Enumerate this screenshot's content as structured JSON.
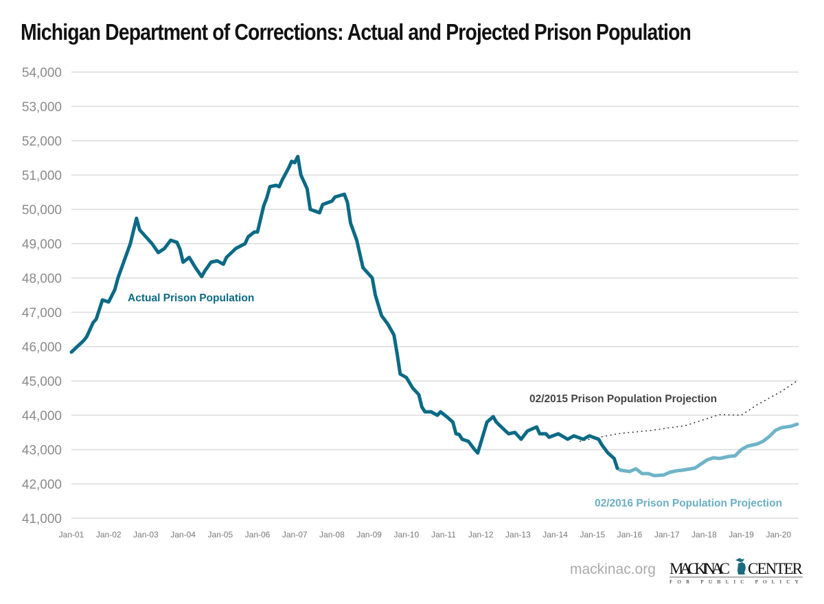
{
  "chart_data": {
    "type": "line",
    "title": "Michigan Department of Corrections: Actual and Projected Prison Population",
    "xlabel": "",
    "ylabel": "",
    "ylim": [
      41000,
      54000
    ],
    "xlim": [
      "2001-01",
      "2020-07"
    ],
    "grid": true,
    "yticks": [
      "41,000",
      "42,000",
      "43,000",
      "44,000",
      "45,000",
      "46,000",
      "47,000",
      "48,000",
      "49,000",
      "50,000",
      "51,000",
      "52,000",
      "53,000",
      "54,000"
    ],
    "ytick_values": [
      41000,
      42000,
      43000,
      44000,
      45000,
      46000,
      47000,
      48000,
      49000,
      50000,
      51000,
      52000,
      53000,
      54000
    ],
    "xticks": [
      "Jan-01",
      "Jan-02",
      "Jan-03",
      "Jan-04",
      "Jan-05",
      "Jan-06",
      "Jan-07",
      "Jan-08",
      "Jan-09",
      "Jan-10",
      "Jan-11",
      "Jan-12",
      "Jan-13",
      "Jan-14",
      "Jan-15",
      "Jan-16",
      "Jan-17",
      "Jan-18",
      "Jan-19",
      "Jan-20"
    ],
    "series": [
      {
        "name": "Actual Prison Population",
        "color": "#0b6a85",
        "style": "solid-thick",
        "points": [
          [
            "2001-01",
            45840
          ],
          [
            "2001-05",
            46180
          ],
          [
            "2001-06",
            46300
          ],
          [
            "2001-08",
            46700
          ],
          [
            "2001-09",
            46800
          ],
          [
            "2001-11",
            47360
          ],
          [
            "2002-01",
            47300
          ],
          [
            "2002-03",
            47660
          ],
          [
            "2002-04",
            48000
          ],
          [
            "2002-06",
            48500
          ],
          [
            "2002-08",
            49000
          ],
          [
            "2002-10",
            49740
          ],
          [
            "2002-11",
            49400
          ],
          [
            "2003-01",
            49200
          ],
          [
            "2003-03",
            49000
          ],
          [
            "2003-05",
            48740
          ],
          [
            "2003-07",
            48860
          ],
          [
            "2003-09",
            49100
          ],
          [
            "2003-11",
            49040
          ],
          [
            "2003-12",
            48840
          ],
          [
            "2004-01",
            48460
          ],
          [
            "2004-03",
            48600
          ],
          [
            "2004-05",
            48300
          ],
          [
            "2004-07",
            48040
          ],
          [
            "2004-08",
            48200
          ],
          [
            "2004-10",
            48460
          ],
          [
            "2004-12",
            48500
          ],
          [
            "2005-02",
            48400
          ],
          [
            "2005-03",
            48600
          ],
          [
            "2005-06",
            48860
          ],
          [
            "2005-09",
            49000
          ],
          [
            "2005-10",
            49200
          ],
          [
            "2005-12",
            49340
          ],
          [
            "2006-01",
            49340
          ],
          [
            "2006-03",
            50100
          ],
          [
            "2006-04",
            50340
          ],
          [
            "2006-05",
            50660
          ],
          [
            "2006-07",
            50700
          ],
          [
            "2006-08",
            50660
          ],
          [
            "2006-09",
            50860
          ],
          [
            "2006-11",
            51200
          ],
          [
            "2006-12",
            51400
          ],
          [
            "2007-01",
            51360
          ],
          [
            "2007-02",
            51540
          ],
          [
            "2007-03",
            51000
          ],
          [
            "2007-05",
            50600
          ],
          [
            "2007-06",
            50000
          ],
          [
            "2007-09",
            49900
          ],
          [
            "2007-10",
            50140
          ],
          [
            "2008-01",
            50240
          ],
          [
            "2008-02",
            50360
          ],
          [
            "2008-05",
            50440
          ],
          [
            "2008-06",
            50200
          ],
          [
            "2008-07",
            49600
          ],
          [
            "2008-09",
            49100
          ],
          [
            "2008-11",
            48300
          ],
          [
            "2009-02",
            48000
          ],
          [
            "2009-03",
            47500
          ],
          [
            "2009-05",
            46900
          ],
          [
            "2009-07",
            46660
          ],
          [
            "2009-09",
            46340
          ],
          [
            "2009-10",
            45800
          ],
          [
            "2009-11",
            45200
          ],
          [
            "2010-01",
            45100
          ],
          [
            "2010-03",
            44800
          ],
          [
            "2010-05",
            44600
          ],
          [
            "2010-06",
            44240
          ],
          [
            "2010-07",
            44100
          ],
          [
            "2010-09",
            44100
          ],
          [
            "2010-11",
            44000
          ],
          [
            "2010-12",
            44100
          ],
          [
            "2011-02",
            43960
          ],
          [
            "2011-04",
            43800
          ],
          [
            "2011-05",
            43460
          ],
          [
            "2011-06",
            43440
          ],
          [
            "2011-07",
            43300
          ],
          [
            "2011-09",
            43240
          ],
          [
            "2011-11",
            43000
          ],
          [
            "2011-12",
            42900
          ],
          [
            "2012-02",
            43500
          ],
          [
            "2012-03",
            43800
          ],
          [
            "2012-05",
            43960
          ],
          [
            "2012-06",
            43800
          ],
          [
            "2012-09",
            43540
          ],
          [
            "2012-10",
            43460
          ],
          [
            "2012-12",
            43500
          ],
          [
            "2013-02",
            43300
          ],
          [
            "2013-04",
            43540
          ],
          [
            "2013-07",
            43660
          ],
          [
            "2013-08",
            43460
          ],
          [
            "2013-10",
            43460
          ],
          [
            "2013-11",
            43360
          ],
          [
            "2014-02",
            43460
          ],
          [
            "2014-05",
            43300
          ],
          [
            "2014-07",
            43400
          ],
          [
            "2014-10",
            43300
          ],
          [
            "2014-12",
            43400
          ],
          [
            "2015-03",
            43300
          ],
          [
            "2015-04",
            43140
          ],
          [
            "2015-06",
            42900
          ],
          [
            "2015-08",
            42740
          ],
          [
            "2015-09",
            42460
          ]
        ]
      },
      {
        "name": "02/2016 Prison Population Projection",
        "color": "#6fb3c8",
        "style": "solid-thick",
        "points": [
          [
            "2015-09",
            42460
          ],
          [
            "2015-10",
            42400
          ],
          [
            "2016-01",
            42360
          ],
          [
            "2016-03",
            42440
          ],
          [
            "2016-05",
            42300
          ],
          [
            "2016-07",
            42300
          ],
          [
            "2016-09",
            42240
          ],
          [
            "2016-12",
            42260
          ],
          [
            "2017-02",
            42340
          ],
          [
            "2017-04",
            42380
          ],
          [
            "2017-06",
            42400
          ],
          [
            "2017-10",
            42460
          ],
          [
            "2017-12",
            42580
          ],
          [
            "2018-02",
            42700
          ],
          [
            "2018-04",
            42760
          ],
          [
            "2018-06",
            42740
          ],
          [
            "2018-09",
            42800
          ],
          [
            "2018-11",
            42820
          ],
          [
            "2019-01",
            43000
          ],
          [
            "2019-03",
            43100
          ],
          [
            "2019-06",
            43160
          ],
          [
            "2019-08",
            43240
          ],
          [
            "2019-10",
            43380
          ],
          [
            "2019-12",
            43560
          ],
          [
            "2020-02",
            43640
          ],
          [
            "2020-05",
            43680
          ],
          [
            "2020-07",
            43740
          ]
        ]
      },
      {
        "name": "02/2015 Prison Population Projection",
        "color": "#222222",
        "style": "dotted",
        "points": [
          [
            "2014-09",
            43240
          ],
          [
            "2014-12",
            43300
          ],
          [
            "2015-09",
            43460
          ],
          [
            "2016-08",
            43560
          ],
          [
            "2017-07",
            43700
          ],
          [
            "2018-06",
            44020
          ],
          [
            "2019-01",
            44000
          ],
          [
            "2019-06",
            44300
          ],
          [
            "2019-10",
            44500
          ],
          [
            "2020-02",
            44700
          ],
          [
            "2020-07",
            45000
          ]
        ]
      }
    ],
    "annotations": [
      {
        "text": "Actual Prison Population",
        "color": "#0b6a85"
      },
      {
        "text": "02/2015 Prison Population Projection",
        "color": "#444444"
      },
      {
        "text": "02/2016 Prison Population Projection",
        "color": "#6aaec4"
      }
    ]
  },
  "footer": {
    "site": "mackinac.org",
    "logo_text": "MACKINAC CENTER",
    "logo_subtext": "FOR PUBLIC POLICY"
  }
}
